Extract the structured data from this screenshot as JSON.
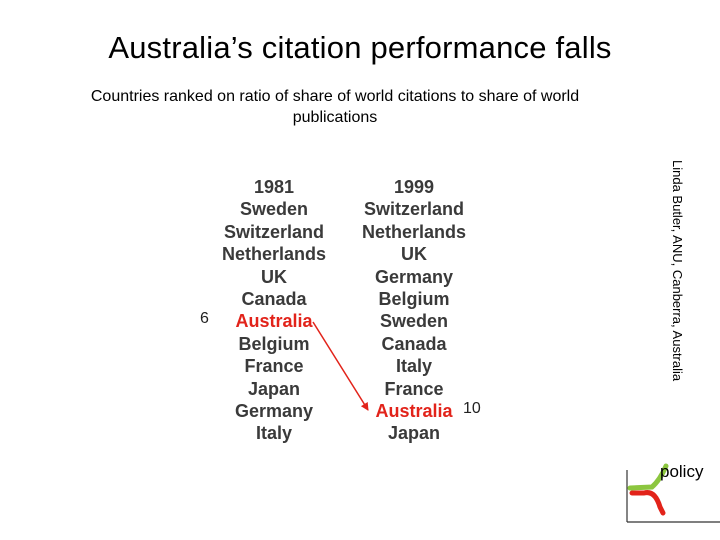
{
  "slide": {
    "title": "Australia’s citation performance falls",
    "subtitle": "Countries ranked on ratio of share of world citations to share of world publications",
    "credit": "Linda Butler, ANU, Canberra, Australia",
    "logo_text": "policy"
  },
  "rankings": {
    "left": {
      "year": "1981",
      "countries": [
        "Sweden",
        "Switzerland",
        "Netherlands",
        "UK",
        "Canada",
        "Australia",
        "Belgium",
        "France",
        "Japan",
        "Germany",
        "Italy"
      ],
      "highlight_index": 5,
      "highlight_rank": "6"
    },
    "right": {
      "year": "1999",
      "countries": [
        "Switzerland",
        "Netherlands",
        "UK",
        "Germany",
        "Belgium",
        "Sweden",
        "Canada",
        "Italy",
        "France",
        "Australia",
        "Japan"
      ],
      "highlight_index": 9,
      "highlight_rank": "10"
    },
    "highlight_color": "#e2231a"
  }
}
